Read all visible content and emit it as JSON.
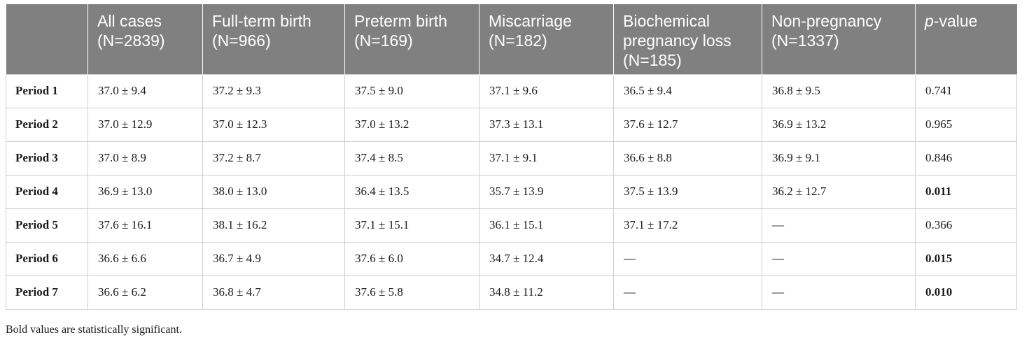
{
  "table": {
    "headers": [
      {
        "line1": "",
        "line2": "",
        "line3": ""
      },
      {
        "line1": "All cases",
        "line2": "(N=2839)",
        "line3": ""
      },
      {
        "line1": "Full-term birth",
        "line2": "(N=966)",
        "line3": ""
      },
      {
        "line1": "Preterm birth",
        "line2": "(N=169)",
        "line3": ""
      },
      {
        "line1": "Miscarriage",
        "line2": "(N=182)",
        "line3": ""
      },
      {
        "line1": "Biochemical",
        "line2": "pregnancy loss",
        "line3": "(N=185)"
      },
      {
        "line1": "Non-pregnancy",
        "line2": "(N=1337)",
        "line3": ""
      }
    ],
    "pvalue_header": {
      "p": "p",
      "rest": "-value"
    },
    "rows": [
      {
        "label": "Period 1",
        "cells": [
          "37.0 ± 9.4",
          "37.2 ± 9.3",
          "37.5 ± 9.0",
          "37.1 ± 9.6",
          "36.5 ± 9.4",
          "36.8 ± 9.5"
        ],
        "pvalue": "0.741",
        "significant": false
      },
      {
        "label": "Period 2",
        "cells": [
          "37.0 ± 12.9",
          "37.0 ± 12.3",
          "37.0 ± 13.2",
          "37.3 ± 13.1",
          "37.6 ± 12.7",
          "36.9 ± 13.2"
        ],
        "pvalue": "0.965",
        "significant": false
      },
      {
        "label": "Period 3",
        "cells": [
          "37.0 ± 8.9",
          "37.2 ± 8.7",
          "37.4 ± 8.5",
          "37.1 ± 9.1",
          "36.6 ± 8.8",
          "36.9 ± 9.1"
        ],
        "pvalue": "0.846",
        "significant": false
      },
      {
        "label": "Period 4",
        "cells": [
          "36.9 ± 13.0",
          "38.0 ± 13.0",
          "36.4 ± 13.5",
          "35.7 ± 13.9",
          "37.5 ± 13.9",
          "36.2 ± 12.7"
        ],
        "pvalue": "0.011",
        "significant": true
      },
      {
        "label": "Period 5",
        "cells": [
          "37.6 ± 16.1",
          "38.1 ± 16.2",
          "37.1 ± 15.1",
          "36.1 ± 15.1",
          "37.1 ± 17.2",
          "—"
        ],
        "pvalue": "0.366",
        "significant": false
      },
      {
        "label": "Period 6",
        "cells": [
          "36.6 ± 6.6",
          "36.7 ± 4.9",
          "37.6 ± 6.0",
          "34.7 ± 12.4",
          "—",
          "—"
        ],
        "pvalue": "0.015",
        "significant": true
      },
      {
        "label": "Period 7",
        "cells": [
          "36.6 ± 6.2",
          "36.8 ± 4.7",
          "37.6 ± 5.8",
          "34.8 ± 11.2",
          "—",
          "—"
        ],
        "pvalue": "0.010",
        "significant": true
      }
    ]
  },
  "footnote": "Bold values are statistically significant."
}
